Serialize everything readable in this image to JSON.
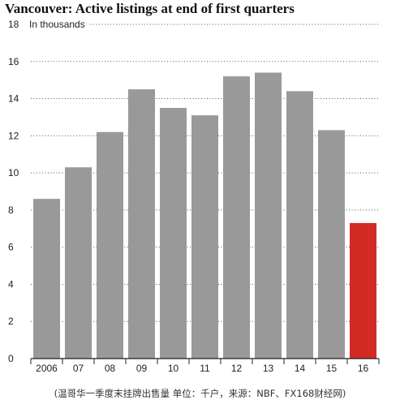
{
  "chart_data": {
    "type": "bar",
    "title": "Vancouver: Active listings at end of first quarters",
    "unit_label": "In thousands",
    "categories": [
      "2006",
      "07",
      "08",
      "09",
      "10",
      "11",
      "12",
      "13",
      "14",
      "15",
      "16"
    ],
    "values": [
      8.6,
      10.3,
      12.2,
      14.5,
      13.5,
      13.1,
      15.2,
      15.4,
      14.4,
      12.3,
      7.3
    ],
    "ylim": [
      0,
      18
    ],
    "yticks": [
      0,
      2,
      4,
      6,
      8,
      10,
      12,
      14,
      16,
      18
    ],
    "grid": "dotted horizontal",
    "colors": {
      "bar": "#9a999a",
      "highlight": "#d42a26",
      "highlight_category": "16"
    }
  },
  "caption": "(温哥华一季度末挂牌出售量 单位：千户，来源：NBF、FX168财经网)"
}
